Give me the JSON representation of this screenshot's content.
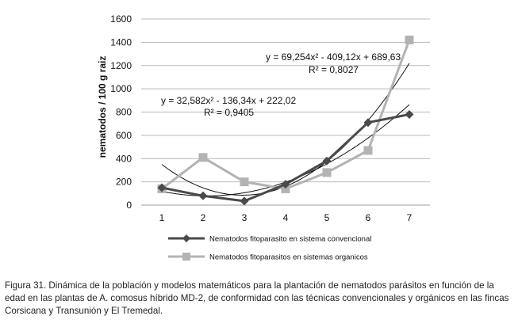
{
  "chart_data": {
    "type": "line",
    "x": [
      1,
      2,
      3,
      4,
      5,
      6,
      7
    ],
    "ylabel": "nematodos / 100 g raiz",
    "ylim": [
      0,
      1600
    ],
    "yticks": [
      0,
      200,
      400,
      600,
      800,
      1000,
      1200,
      1400,
      1600
    ],
    "grid": "horizontal",
    "legend_position": "bottom",
    "series": [
      {
        "name": "Nematodos fitoparasito en sistema convencional",
        "color": "#4a4a4a",
        "marker": "diamond",
        "values": [
          150,
          80,
          35,
          180,
          380,
          710,
          780
        ],
        "trend": {
          "equation": "y = 32,582x² - 136,34x + 222,02",
          "r2": "R² = 0,9405",
          "coef": [
            32.582,
            -136.34,
            222.02
          ]
        }
      },
      {
        "name": "Nematodos fitoparasitos en sistemas organicos",
        "color": "#b3b3b3",
        "marker": "square",
        "values": [
          140,
          410,
          200,
          140,
          280,
          470,
          1420
        ],
        "trend": {
          "equation": "y = 69,254x² - 409,12x + 689,63",
          "r2": "R² = 0,8027",
          "coef": [
            69.254,
            -409.12,
            689.63
          ]
        }
      }
    ]
  },
  "caption": "Figura 31. Dinámica de la población y modelos matemáticos para la plantación de nematodos parásitos en función de la edad en las plantas de A. comosus híbrido MD-2, de conformidad con las técnicas convencionales y orgánicos en las fincas Corsicana y Transunión y El Tremedal."
}
